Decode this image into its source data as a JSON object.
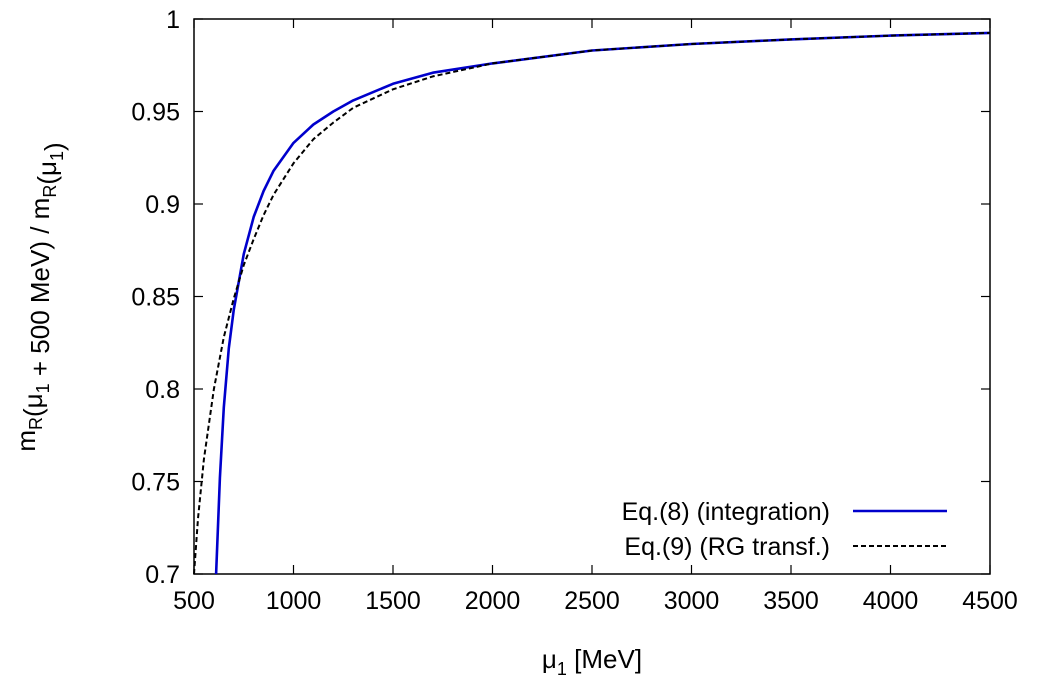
{
  "chart_data": {
    "type": "line",
    "title": "",
    "xlabel": {
      "base": "μ",
      "sub": "1",
      "tail": " [MeV]"
    },
    "ylabel": {
      "parts": [
        {
          "t": "m",
          "sub": "R"
        },
        {
          "t": "(μ",
          "sub": "1"
        },
        {
          "t": " + 500 MeV)  /  m",
          "sub": "R"
        },
        {
          "t": "(μ",
          "sub": "1"
        },
        {
          "t": ")",
          "sub": ""
        }
      ]
    },
    "xlim": [
      500,
      4500
    ],
    "ylim": [
      0.7,
      1.0
    ],
    "xticks": [
      500,
      1000,
      1500,
      2000,
      2500,
      3000,
      3500,
      4000,
      4500
    ],
    "xtick_labels": [
      "500",
      "1000",
      "1500",
      "2000",
      "2500",
      "3000",
      "3500",
      "4000",
      "4500"
    ],
    "yticks": [
      0.7,
      0.75,
      0.8,
      0.85,
      0.9,
      0.95,
      1.0
    ],
    "ytick_labels": [
      "0.7",
      "0.75",
      "0.8",
      "0.85",
      "0.9",
      "0.95",
      "1"
    ],
    "grid": false,
    "legend_position": "bottom-right",
    "series": [
      {
        "name": "Eq.(8) (integration)",
        "color": "#0000cc",
        "style": "solid",
        "x": [
          611,
          630,
          650,
          675,
          700,
          750,
          800,
          850,
          900,
          1000,
          1100,
          1200,
          1300,
          1500,
          1700,
          2000,
          2500,
          3000,
          3500,
          4000,
          4500
        ],
        "y": [
          0.7,
          0.752,
          0.79,
          0.822,
          0.843,
          0.873,
          0.893,
          0.907,
          0.918,
          0.933,
          0.943,
          0.95,
          0.956,
          0.965,
          0.971,
          0.976,
          0.983,
          0.9865,
          0.989,
          0.991,
          0.9925
        ]
      },
      {
        "name": "Eq.(9) (RG transf.)",
        "color": "#000000",
        "style": "dashed",
        "x": [
          500,
          520,
          550,
          600,
          650,
          700,
          750,
          800,
          850,
          900,
          1000,
          1100,
          1200,
          1300,
          1500,
          1700,
          2000,
          2500,
          3000,
          3500,
          4000,
          4500
        ],
        "y": [
          0.7,
          0.73,
          0.762,
          0.8,
          0.828,
          0.849,
          0.867,
          0.881,
          0.894,
          0.905,
          0.922,
          0.935,
          0.944,
          0.952,
          0.962,
          0.969,
          0.976,
          0.983,
          0.9865,
          0.989,
          0.991,
          0.9925
        ]
      }
    ]
  }
}
